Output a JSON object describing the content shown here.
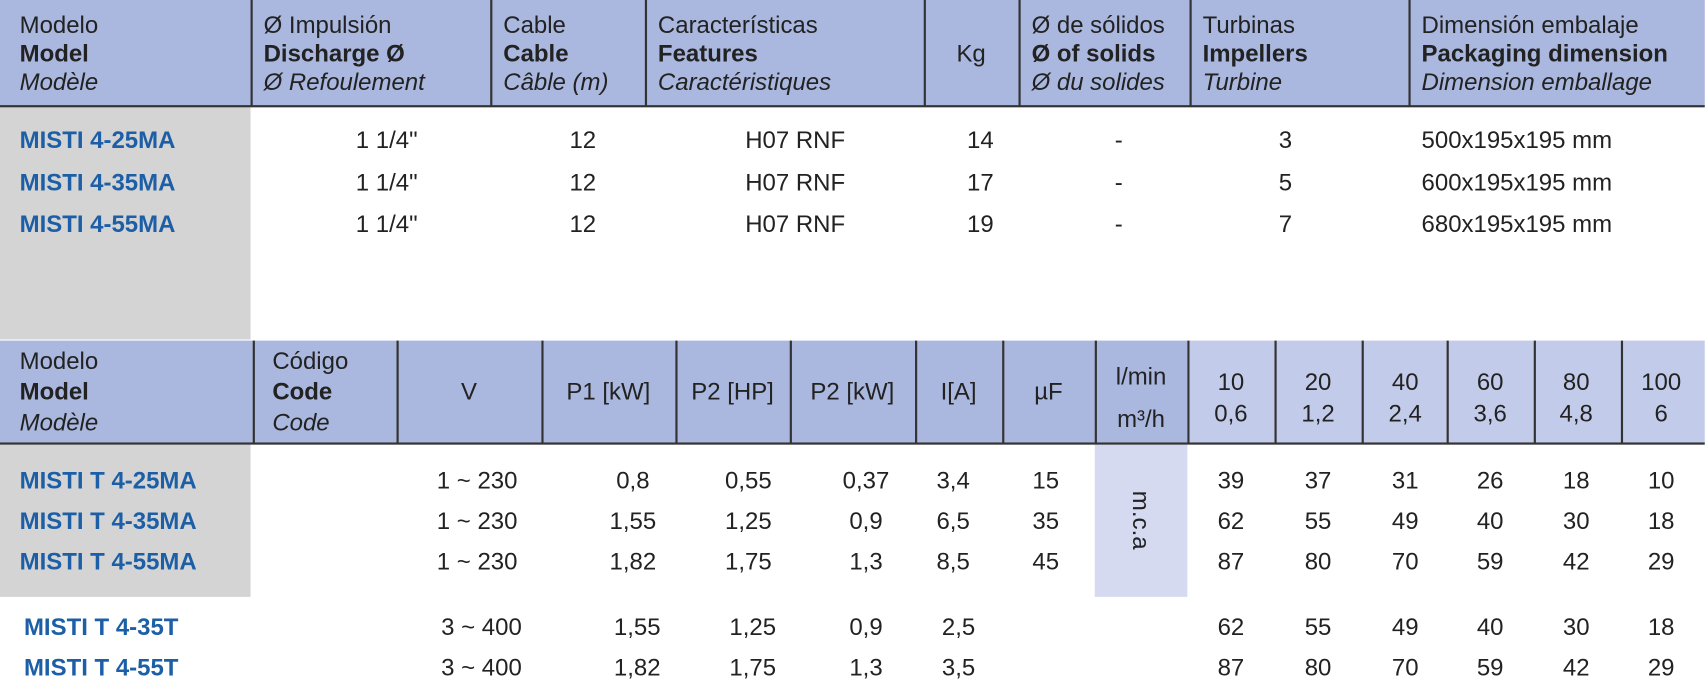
{
  "table1": {
    "header": [
      [
        "Modelo",
        "Model",
        "Modèle"
      ],
      [
        "Ø Impulsión",
        "Discharge Ø",
        "Ø Refoulement"
      ],
      [
        "Cable",
        "Cable",
        "Câble (m)"
      ],
      [
        "Características",
        "Features",
        "Caractéristiques"
      ],
      [
        "Kg"
      ],
      [
        "Ø de sólidos",
        "Ø of solids",
        "Ø du solides"
      ],
      [
        "Turbinas",
        "Impellers",
        "Turbine"
      ],
      [
        "Dimensión embalaje",
        "Packaging dimension",
        "Dimension emballage"
      ]
    ],
    "rows": [
      [
        "MISTI 4-25MA",
        "1 1/4\"",
        "12",
        "H07 RNF",
        "14",
        "-",
        "3",
        "500x195x195 mm"
      ],
      [
        "MISTI 4-35MA",
        "1 1/4\"",
        "12",
        "H07 RNF",
        "17",
        "-",
        "5",
        "600x195x195 mm"
      ],
      [
        "MISTI 4-55MA",
        "1 1/4\"",
        "12",
        "H07 RNF",
        "19",
        "-",
        "7",
        "680x195x195 mm"
      ]
    ]
  },
  "table2": {
    "header": [
      [
        "Modelo",
        "Model",
        "Modèle"
      ],
      [
        "Código",
        "Code",
        "Code"
      ],
      [
        "V"
      ],
      [
        "P1 [kW]"
      ],
      [
        "P2 [HP]"
      ],
      [
        "P2 [kW]"
      ],
      [
        "I[A]"
      ],
      [
        "µF"
      ],
      [
        "l/min",
        "m³/h"
      ]
    ],
    "flow_columns": [
      [
        "10",
        "0,6"
      ],
      [
        "20",
        "1,2"
      ],
      [
        "40",
        "2,4"
      ],
      [
        "60",
        "3,6"
      ],
      [
        "80",
        "4,8"
      ],
      [
        "100",
        "6"
      ]
    ],
    "unit": "m.c.a",
    "single_phase_rows": [
      [
        "MISTI T 4-25MA",
        "1 ~ 230",
        "0,8",
        "0,55",
        "0,37",
        "3,4",
        "15",
        "39",
        "37",
        "31",
        "26",
        "18",
        "10"
      ],
      [
        "MISTI T 4-35MA",
        "1 ~ 230",
        "1,55",
        "1,25",
        "0,9",
        "6,5",
        "35",
        "62",
        "55",
        "49",
        "40",
        "30",
        "18"
      ],
      [
        "MISTI T 4-55MA",
        "1 ~ 230",
        "1,82",
        "1,75",
        "1,3",
        "8,5",
        "45",
        "87",
        "80",
        "70",
        "59",
        "42",
        "29"
      ]
    ],
    "three_phase_rows": [
      [
        "MISTI T 4-35T",
        "3 ~ 400",
        "1,55",
        "1,25",
        "0,9",
        "2,5",
        "62",
        "55",
        "49",
        "40",
        "30",
        "18"
      ],
      [
        "MISTI T 4-55T",
        "3 ~ 400",
        "1,82",
        "1,75",
        "1,3",
        "3,5",
        "87",
        "80",
        "70",
        "59",
        "42",
        "29"
      ]
    ]
  }
}
